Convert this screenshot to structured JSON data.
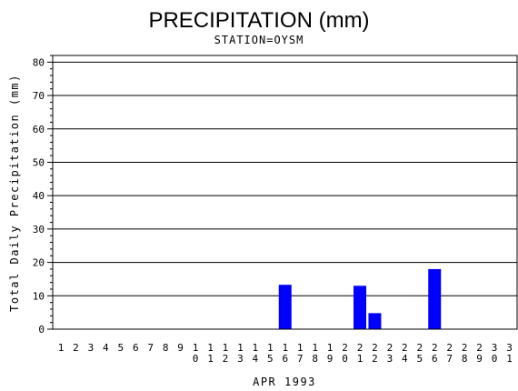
{
  "chart_data": {
    "type": "bar",
    "title": "PRECIPITATION (mm)",
    "subtitle": "STATION=OYSM",
    "xlabel": "APR 1993",
    "ylabel": "Total Daily Precipitation (mm)",
    "ylim": [
      0,
      82
    ],
    "yticks": [
      0,
      10,
      20,
      30,
      40,
      50,
      60,
      70,
      80
    ],
    "grid": "horizontal",
    "bar_color": "#0000ff",
    "categories": [
      "1",
      "2",
      "3",
      "4",
      "5",
      "6",
      "7",
      "8",
      "9",
      "10",
      "11",
      "12",
      "13",
      "14",
      "15",
      "16",
      "17",
      "18",
      "19",
      "20",
      "21",
      "22",
      "23",
      "24",
      "25",
      "26",
      "27",
      "28",
      "29",
      "30",
      "31"
    ],
    "values": [
      0,
      0,
      0,
      0,
      0,
      0,
      0,
      0,
      0,
      0,
      0,
      0,
      0,
      0,
      0,
      13.3,
      0,
      0,
      0,
      0,
      13,
      4.8,
      0,
      0,
      0,
      18,
      0,
      0,
      0,
      0,
      0
    ]
  }
}
